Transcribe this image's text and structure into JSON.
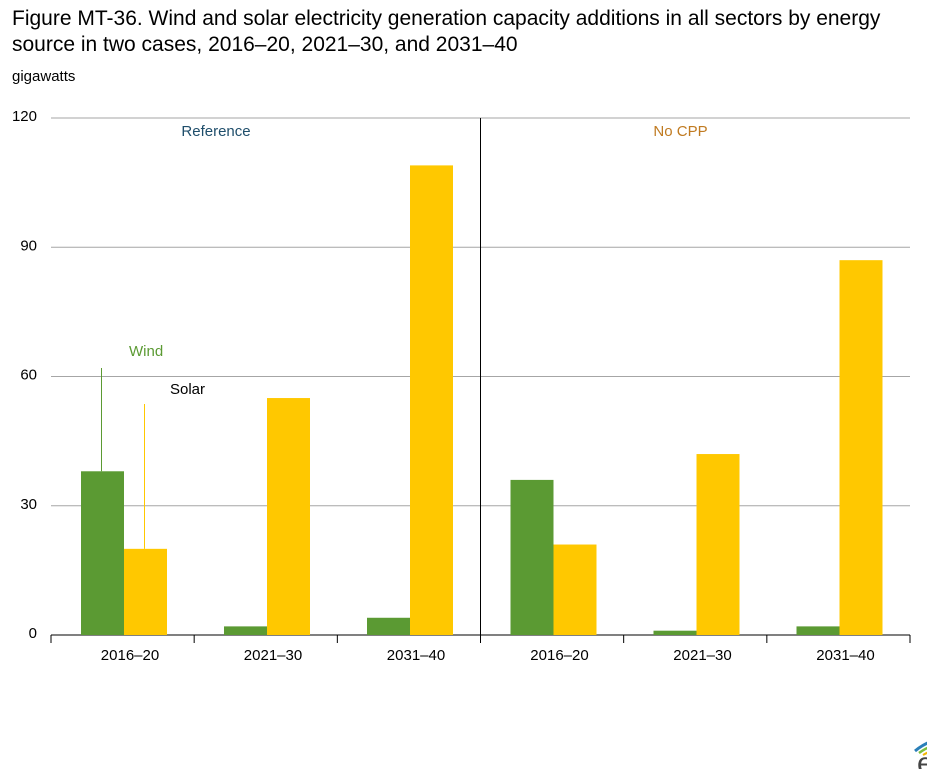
{
  "title": "Figure MT-36. Wind and solar electricity generation capacity additions in all sectors by energy source in two cases, 2016–20, 2021–30, and 2031–40",
  "unit_label": "gigawatts",
  "logo_text": "eia",
  "colors": {
    "wind": "#5b9a33",
    "solar": "#ffc800",
    "reference_label": "#1f4e6b",
    "nocpp_label": "#c07a20",
    "grid": "#a6a6a6"
  },
  "chart_data": {
    "type": "bar",
    "ylim": [
      0,
      120
    ],
    "yticks": [
      0,
      30,
      60,
      90,
      120
    ],
    "grid": true,
    "panels": [
      {
        "name": "Reference",
        "categories": [
          "2016–20",
          "2021–30",
          "2031–40"
        ],
        "series": [
          {
            "name": "Wind",
            "values": [
              38,
              2,
              4
            ]
          },
          {
            "name": "Solar",
            "values": [
              20,
              55,
              109
            ]
          }
        ]
      },
      {
        "name": "No CPP",
        "categories": [
          "2016–20",
          "2021–30",
          "2031–40"
        ],
        "series": [
          {
            "name": "Wind",
            "values": [
              36,
              1,
              2
            ]
          },
          {
            "name": "Solar",
            "values": [
              21,
              42,
              87
            ]
          }
        ]
      }
    ],
    "annotations": [
      "Wind",
      "Solar"
    ]
  }
}
